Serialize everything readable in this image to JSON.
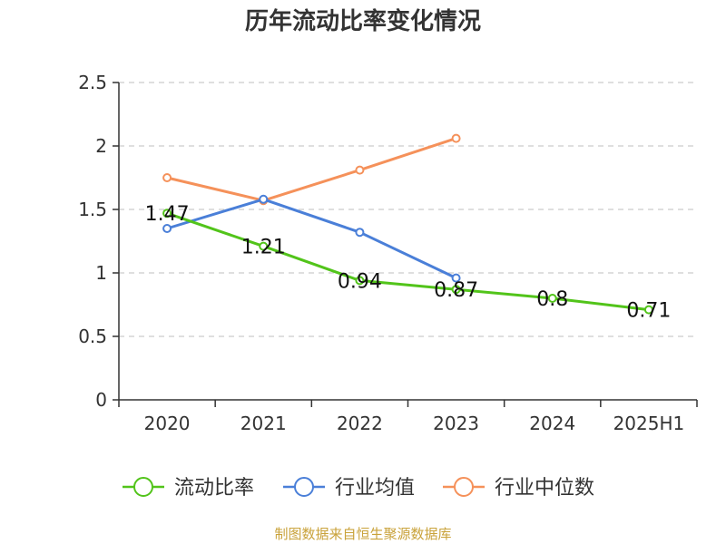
{
  "chart_data": {
    "type": "line",
    "title": "历年流动比率变化情况",
    "categories": [
      "2020",
      "2021",
      "2022",
      "2023",
      "2024",
      "2025H1"
    ],
    "ylim": [
      0,
      2.5
    ],
    "yticks": [
      "0",
      "0.5",
      "1",
      "1.5",
      "2",
      "2.5"
    ],
    "grid": true,
    "legend_position": "bottom",
    "series": [
      {
        "name": "流动比率",
        "color": "#52c41a",
        "values": [
          1.47,
          1.21,
          0.94,
          0.87,
          0.8,
          0.71
        ],
        "labels": [
          "1.47",
          "1.21",
          "0.94",
          "0.87",
          "0.8",
          "0.71"
        ]
      },
      {
        "name": "行业均值",
        "color": "#4a7fd8",
        "values": [
          1.35,
          1.58,
          1.32,
          0.96,
          null,
          null
        ]
      },
      {
        "name": "行业中位数",
        "color": "#f5915a",
        "values": [
          1.75,
          1.57,
          1.81,
          2.06,
          null,
          null
        ]
      }
    ]
  },
  "source": "制图数据来自恒生聚源数据库"
}
